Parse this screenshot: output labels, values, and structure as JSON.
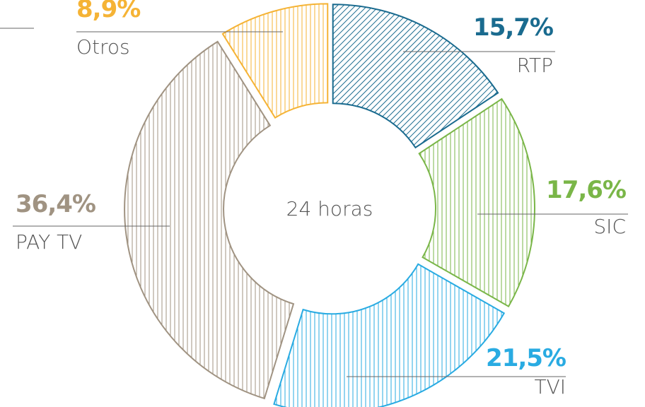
{
  "chart_data": {
    "type": "donut",
    "center_label": "24 horas",
    "categories": [
      "RTP",
      "SIC",
      "TVI",
      "PAY TV",
      "Otros"
    ],
    "values": [
      15.7,
      17.6,
      21.5,
      36.4,
      8.9
    ],
    "value_labels": [
      "15,7%",
      "17,6%",
      "21,5%",
      "36,4%",
      "8,9%"
    ],
    "colors": [
      "#1a6b8f",
      "#7ab648",
      "#29abe2",
      "#a09382",
      "#f5b335"
    ]
  }
}
